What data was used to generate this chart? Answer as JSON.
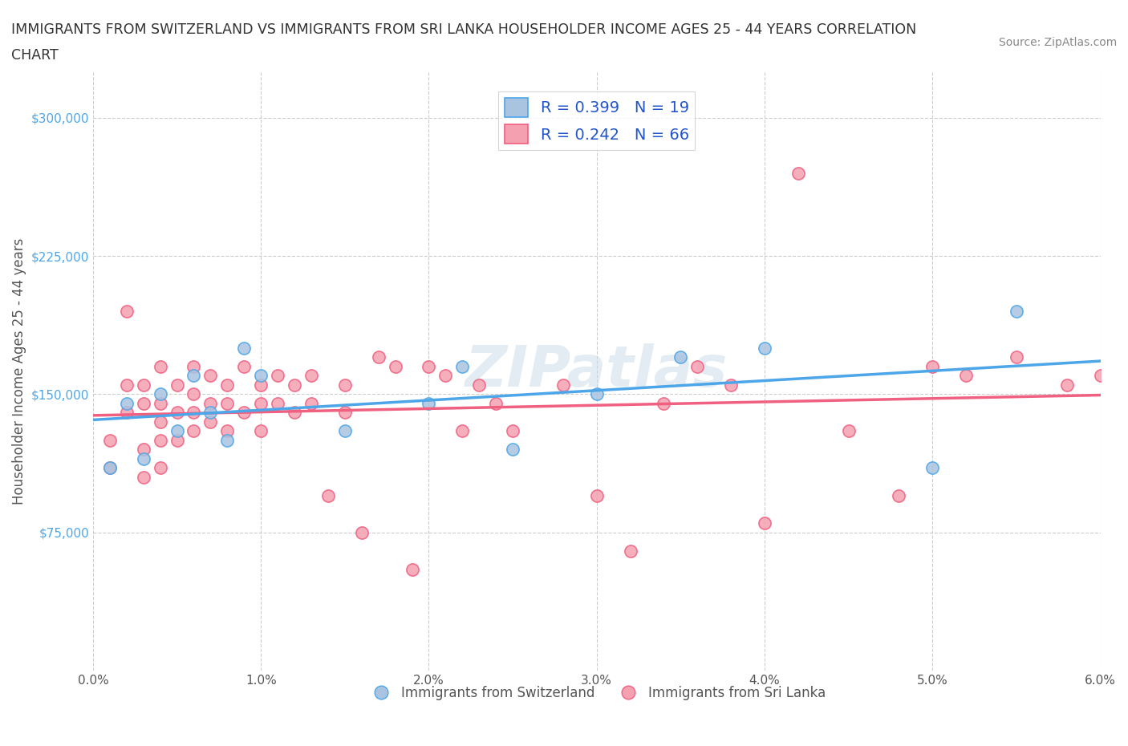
{
  "title_line1": "IMMIGRANTS FROM SWITZERLAND VS IMMIGRANTS FROM SRI LANKA HOUSEHOLDER INCOME AGES 25 - 44 YEARS CORRELATION",
  "title_line2": "CHART",
  "source": "Source: ZipAtlas.com",
  "xlabel": "",
  "ylabel": "Householder Income Ages 25 - 44 years",
  "xlim": [
    0.0,
    0.06
  ],
  "ylim": [
    0,
    325000
  ],
  "xticks": [
    0.0,
    0.01,
    0.02,
    0.03,
    0.04,
    0.05,
    0.06
  ],
  "xticklabels": [
    "0.0%",
    "1.0%",
    "2.0%",
    "3.0%",
    "4.0%",
    "5.0%",
    "6.0%"
  ],
  "yticks": [
    75000,
    150000,
    225000,
    300000
  ],
  "yticklabels": [
    "$75,000",
    "$150,000",
    "$225,000",
    "$300,000"
  ],
  "switzerland_color": "#a8c4e0",
  "sri_lanka_color": "#f4a0b0",
  "switzerland_line_color": "#4da6e8",
  "sri_lanka_line_color": "#f06080",
  "R_switzerland": 0.399,
  "N_switzerland": 19,
  "R_sri_lanka": 0.242,
  "N_sri_lanka": 66,
  "legend_label_switzerland": "Immigrants from Switzerland",
  "legend_label_sri_lanka": "Immigrants from Sri Lanka",
  "watermark": "ZIPatlas",
  "background_color": "#ffffff",
  "grid_color": "#cccccc",
  "switzerland_x": [
    0.001,
    0.002,
    0.003,
    0.004,
    0.005,
    0.006,
    0.007,
    0.008,
    0.009,
    0.01,
    0.015,
    0.02,
    0.022,
    0.025,
    0.03,
    0.035,
    0.04,
    0.05,
    0.055
  ],
  "switzerland_y": [
    110000,
    145000,
    115000,
    150000,
    130000,
    160000,
    140000,
    125000,
    175000,
    160000,
    130000,
    145000,
    165000,
    120000,
    150000,
    170000,
    175000,
    110000,
    195000
  ],
  "sri_lanka_x": [
    0.001,
    0.001,
    0.002,
    0.002,
    0.002,
    0.003,
    0.003,
    0.003,
    0.003,
    0.004,
    0.004,
    0.004,
    0.004,
    0.004,
    0.005,
    0.005,
    0.005,
    0.006,
    0.006,
    0.006,
    0.006,
    0.007,
    0.007,
    0.007,
    0.008,
    0.008,
    0.008,
    0.009,
    0.009,
    0.01,
    0.01,
    0.01,
    0.011,
    0.011,
    0.012,
    0.012,
    0.013,
    0.013,
    0.014,
    0.015,
    0.015,
    0.016,
    0.017,
    0.018,
    0.019,
    0.02,
    0.021,
    0.022,
    0.023,
    0.024,
    0.025,
    0.028,
    0.03,
    0.032,
    0.034,
    0.036,
    0.038,
    0.04,
    0.042,
    0.045,
    0.048,
    0.05,
    0.052,
    0.055,
    0.058,
    0.06
  ],
  "sri_lanka_y": [
    125000,
    110000,
    155000,
    195000,
    140000,
    145000,
    155000,
    120000,
    105000,
    165000,
    145000,
    135000,
    125000,
    110000,
    155000,
    140000,
    125000,
    165000,
    150000,
    140000,
    130000,
    160000,
    145000,
    135000,
    155000,
    145000,
    130000,
    165000,
    140000,
    155000,
    145000,
    130000,
    160000,
    145000,
    155000,
    140000,
    160000,
    145000,
    95000,
    155000,
    140000,
    75000,
    170000,
    165000,
    55000,
    165000,
    160000,
    130000,
    155000,
    145000,
    130000,
    155000,
    95000,
    65000,
    145000,
    165000,
    155000,
    80000,
    270000,
    130000,
    95000,
    165000,
    160000,
    170000,
    155000,
    160000
  ]
}
